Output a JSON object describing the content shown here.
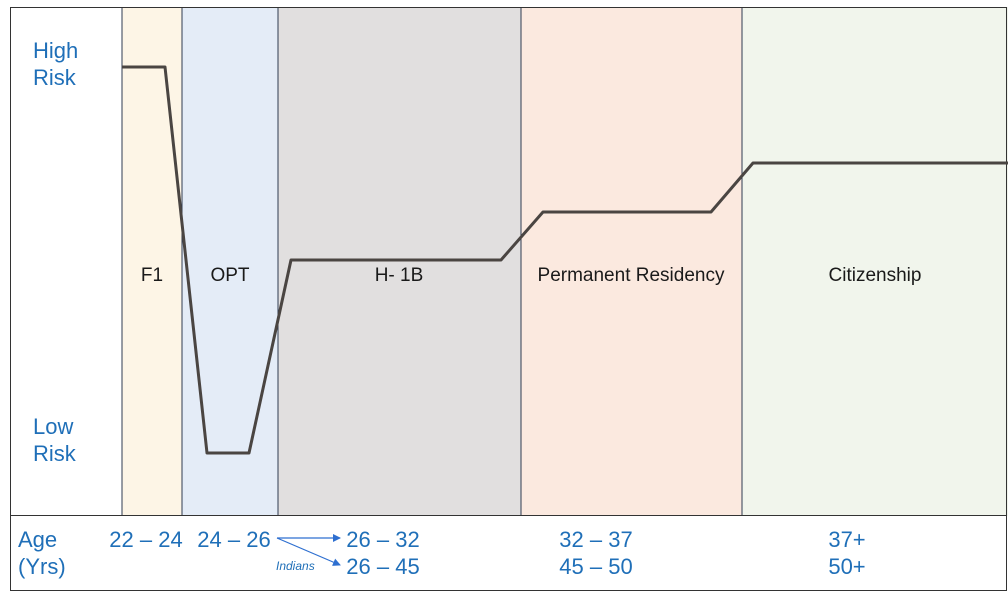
{
  "risk_axis": {
    "high": [
      "High",
      "Risk"
    ],
    "low": [
      "Low",
      "Risk"
    ]
  },
  "stages": [
    {
      "id": "f1",
      "label": "F1",
      "color": "#fdf5e6"
    },
    {
      "id": "opt",
      "label": "OPT",
      "color": "#e4ecf7"
    },
    {
      "id": "h1b",
      "label": "H- 1B",
      "color": "#e1dfdf"
    },
    {
      "id": "pr",
      "label": "Permanent Residency",
      "color": "#fbe9df"
    },
    {
      "id": "citizenship",
      "label": "Citizenship",
      "color": "#f1f5ec"
    }
  ],
  "age_row": {
    "label": [
      "Age",
      "(Yrs)"
    ],
    "f1": "22 – 24",
    "opt": "24 – 26",
    "h1b": [
      "26 – 32",
      "26 – 45"
    ],
    "pr": [
      "32 – 37",
      "45 – 50"
    ],
    "citizenship": [
      "37+",
      "50+"
    ],
    "indians_note": "Indians"
  },
  "colors": {
    "risk_line": "#4a4542",
    "text_blue": "#1f6fb8",
    "divider": "#2f3b52",
    "border": "#333333"
  }
}
